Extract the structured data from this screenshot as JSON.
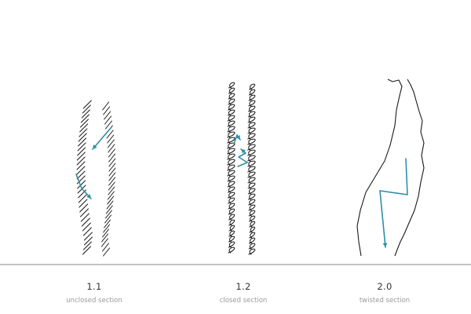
{
  "colors": {
    "stroke": "#1a1a1a",
    "arrow": "#2f8ea6",
    "baseline": "#8a8a8a",
    "caption_number": "#333333",
    "caption_text": "#9a9a9a"
  },
  "sections": [
    {
      "number": "1.1",
      "label": "unclosed section"
    },
    {
      "number": "1.2",
      "label": "closed section"
    },
    {
      "number": "2.0",
      "label": "twisted section"
    }
  ]
}
